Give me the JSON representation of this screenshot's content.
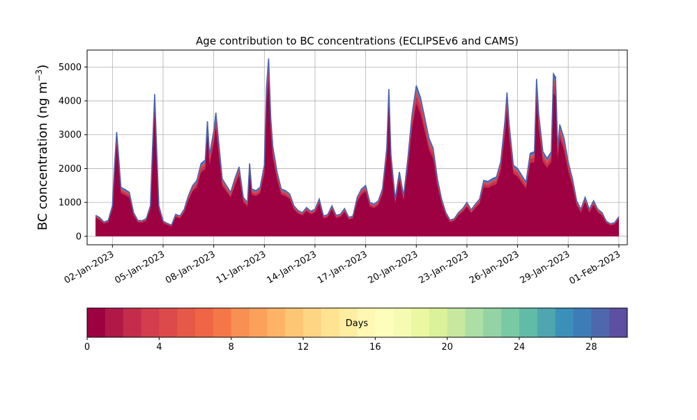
{
  "chart_data": [
    {
      "type": "area",
      "title": "Age contribution to BC concentrations (ECLIPSEv6 and CAMS)",
      "xlabel": "",
      "ylabel": "BC concentration (ng m",
      "ylabel_sup": "−3",
      "ylabel_close": ")",
      "x_start": "2023-01-01",
      "x_end": "2023-02-01",
      "xlim": [
        "2022-12-31T12:00",
        "2023-02-01T12:00"
      ],
      "ylim": [
        -250,
        5500
      ],
      "yticks": [
        0,
        1000,
        2000,
        3000,
        4000,
        5000
      ],
      "xticks": [
        "02-Jan-2023",
        "05-Jan-2023",
        "08-Jan-2023",
        "11-Jan-2023",
        "14-Jan-2023",
        "17-Jan-2023",
        "20-Jan-2023",
        "23-Jan-2023",
        "26-Jan-2023",
        "29-Jan-2023",
        "01-Feb-2023"
      ],
      "xtick_dates": [
        "2023-01-02",
        "2023-01-05",
        "2023-01-08",
        "2023-01-11",
        "2023-01-14",
        "2023-01-17",
        "2023-01-20",
        "2023-01-23",
        "2023-01-26",
        "2023-01-29",
        "2023-02-01"
      ],
      "grid": true,
      "stack_note": "stacked by air-mass age (days); total shown",
      "points": [
        [
          "2023-01-01T00:00",
          620
        ],
        [
          "2023-01-01T06:00",
          550
        ],
        [
          "2023-01-01T12:00",
          420
        ],
        [
          "2023-01-01T18:00",
          470
        ],
        [
          "2023-01-02T00:00",
          900
        ],
        [
          "2023-01-02T03:00",
          2100
        ],
        [
          "2023-01-02T06:00",
          3080
        ],
        [
          "2023-01-02T09:00",
          2300
        ],
        [
          "2023-01-02T12:00",
          1450
        ],
        [
          "2023-01-02T18:00",
          1380
        ],
        [
          "2023-01-03T00:00",
          1300
        ],
        [
          "2023-01-03T06:00",
          700
        ],
        [
          "2023-01-03T12:00",
          470
        ],
        [
          "2023-01-03T18:00",
          460
        ],
        [
          "2023-01-04T00:00",
          520
        ],
        [
          "2023-01-04T06:00",
          900
        ],
        [
          "2023-01-04T09:00",
          2600
        ],
        [
          "2023-01-04T12:00",
          4200
        ],
        [
          "2023-01-04T15:00",
          2500
        ],
        [
          "2023-01-04T18:00",
          900
        ],
        [
          "2023-01-05T00:00",
          450
        ],
        [
          "2023-01-05T06:00",
          380
        ],
        [
          "2023-01-05T12:00",
          330
        ],
        [
          "2023-01-05T18:00",
          650
        ],
        [
          "2023-01-06T00:00",
          600
        ],
        [
          "2023-01-06T06:00",
          800
        ],
        [
          "2023-01-06T12:00",
          1200
        ],
        [
          "2023-01-06T18:00",
          1500
        ],
        [
          "2023-01-07T00:00",
          1650
        ],
        [
          "2023-01-07T06:00",
          2150
        ],
        [
          "2023-01-07T12:00",
          2250
        ],
        [
          "2023-01-07T15:00",
          3400
        ],
        [
          "2023-01-07T18:00",
          2400
        ],
        [
          "2023-01-08T00:00",
          3100
        ],
        [
          "2023-01-08T03:00",
          3650
        ],
        [
          "2023-01-08T06:00",
          3000
        ],
        [
          "2023-01-08T12:00",
          1700
        ],
        [
          "2023-01-08T18:00",
          1500
        ],
        [
          "2023-01-09T00:00",
          1300
        ],
        [
          "2023-01-09T06:00",
          1700
        ],
        [
          "2023-01-09T12:00",
          2050
        ],
        [
          "2023-01-09T18:00",
          1150
        ],
        [
          "2023-01-10T00:00",
          1000
        ],
        [
          "2023-01-10T03:00",
          2150
        ],
        [
          "2023-01-10T06:00",
          1400
        ],
        [
          "2023-01-10T12:00",
          1350
        ],
        [
          "2023-01-10T18:00",
          1450
        ],
        [
          "2023-01-11T00:00",
          2100
        ],
        [
          "2023-01-11T03:00",
          4400
        ],
        [
          "2023-01-11T06:00",
          5250
        ],
        [
          "2023-01-11T09:00",
          3500
        ],
        [
          "2023-01-11T12:00",
          2650
        ],
        [
          "2023-01-11T18:00",
          1900
        ],
        [
          "2023-01-12T00:00",
          1400
        ],
        [
          "2023-01-12T06:00",
          1350
        ],
        [
          "2023-01-12T12:00",
          1250
        ],
        [
          "2023-01-12T18:00",
          900
        ],
        [
          "2023-01-13T00:00",
          760
        ],
        [
          "2023-01-13T06:00",
          700
        ],
        [
          "2023-01-13T12:00",
          850
        ],
        [
          "2023-01-13T18:00",
          740
        ],
        [
          "2023-01-14T00:00",
          800
        ],
        [
          "2023-01-14T06:00",
          1100
        ],
        [
          "2023-01-14T12:00",
          600
        ],
        [
          "2023-01-14T18:00",
          640
        ],
        [
          "2023-01-15T00:00",
          900
        ],
        [
          "2023-01-15T06:00",
          620
        ],
        [
          "2023-01-15T12:00",
          650
        ],
        [
          "2023-01-15T18:00",
          820
        ],
        [
          "2023-01-16T00:00",
          560
        ],
        [
          "2023-01-16T06:00",
          600
        ],
        [
          "2023-01-16T12:00",
          1150
        ],
        [
          "2023-01-16T18:00",
          1400
        ],
        [
          "2023-01-17T00:00",
          1500
        ],
        [
          "2023-01-17T06:00",
          1000
        ],
        [
          "2023-01-17T12:00",
          950
        ],
        [
          "2023-01-17T18:00",
          1050
        ],
        [
          "2023-01-18T00:00",
          1400
        ],
        [
          "2023-01-18T06:00",
          2600
        ],
        [
          "2023-01-18T09:00",
          4350
        ],
        [
          "2023-01-18T12:00",
          2400
        ],
        [
          "2023-01-18T18:00",
          1100
        ],
        [
          "2023-01-19T00:00",
          1900
        ],
        [
          "2023-01-19T06:00",
          1200
        ],
        [
          "2023-01-19T12:00",
          2300
        ],
        [
          "2023-01-19T18:00",
          3600
        ],
        [
          "2023-01-20T00:00",
          4450
        ],
        [
          "2023-01-20T06:00",
          4100
        ],
        [
          "2023-01-20T12:00",
          3500
        ],
        [
          "2023-01-20T18:00",
          2900
        ],
        [
          "2023-01-21T00:00",
          2600
        ],
        [
          "2023-01-21T06:00",
          1700
        ],
        [
          "2023-01-21T12:00",
          1100
        ],
        [
          "2023-01-21T18:00",
          700
        ],
        [
          "2023-01-22T00:00",
          480
        ],
        [
          "2023-01-22T06:00",
          520
        ],
        [
          "2023-01-22T12:00",
          700
        ],
        [
          "2023-01-22T18:00",
          820
        ],
        [
          "2023-01-23T00:00",
          1000
        ],
        [
          "2023-01-23T06:00",
          780
        ],
        [
          "2023-01-23T12:00",
          950
        ],
        [
          "2023-01-23T18:00",
          1100
        ],
        [
          "2023-01-24T00:00",
          1650
        ],
        [
          "2023-01-24T06:00",
          1620
        ],
        [
          "2023-01-24T12:00",
          1700
        ],
        [
          "2023-01-24T18:00",
          1750
        ],
        [
          "2023-01-25T00:00",
          2200
        ],
        [
          "2023-01-25T06:00",
          3400
        ],
        [
          "2023-01-25T09:00",
          4250
        ],
        [
          "2023-01-25T12:00",
          3300
        ],
        [
          "2023-01-25T18:00",
          2100
        ],
        [
          "2023-01-26T00:00",
          2000
        ],
        [
          "2023-01-26T06:00",
          1800
        ],
        [
          "2023-01-26T12:00",
          1600
        ],
        [
          "2023-01-26T18:00",
          2450
        ],
        [
          "2023-01-27T00:00",
          2500
        ],
        [
          "2023-01-27T03:00",
          4650
        ],
        [
          "2023-01-27T06:00",
          3600
        ],
        [
          "2023-01-27T12:00",
          2500
        ],
        [
          "2023-01-27T18:00",
          2300
        ],
        [
          "2023-01-28T00:00",
          2500
        ],
        [
          "2023-01-28T03:00",
          4800
        ],
        [
          "2023-01-28T06:00",
          4700
        ],
        [
          "2023-01-28T09:00",
          2600
        ],
        [
          "2023-01-28T12:00",
          3300
        ],
        [
          "2023-01-28T18:00",
          2900
        ],
        [
          "2023-01-29T00:00",
          2200
        ],
        [
          "2023-01-29T06:00",
          1700
        ],
        [
          "2023-01-29T12:00",
          1050
        ],
        [
          "2023-01-29T18:00",
          800
        ],
        [
          "2023-01-30T00:00",
          1150
        ],
        [
          "2023-01-30T06:00",
          800
        ],
        [
          "2023-01-30T12:00",
          1050
        ],
        [
          "2023-01-30T18:00",
          800
        ],
        [
          "2023-01-31T00:00",
          700
        ],
        [
          "2023-01-31T06:00",
          450
        ],
        [
          "2023-01-31T12:00",
          370
        ],
        [
          "2023-01-31T18:00",
          400
        ],
        [
          "2023-02-01T00:00",
          580
        ]
      ]
    },
    {
      "type": "heatmap",
      "title": "Days",
      "range": [
        0,
        30
      ],
      "n_bins": 30,
      "ticks": [
        0,
        4,
        8,
        12,
        16,
        20,
        24,
        28
      ],
      "colormap": [
        "#9e0142",
        "#b61f48",
        "#cf384d",
        "#dc494c",
        "#e95c47",
        "#f46d43",
        "#f88d52",
        "#fca55d",
        "#fdbe6e",
        "#fed481",
        "#fee593",
        "#fff2aa",
        "#ffffbe",
        "#f5fbb2",
        "#e6f598",
        "#cceb9d",
        "#abdda4",
        "#88cfa4",
        "#66c2a5",
        "#4ea4b0",
        "#3288bd",
        "#4a6fb0",
        "#5e4fa2"
      ]
    }
  ]
}
